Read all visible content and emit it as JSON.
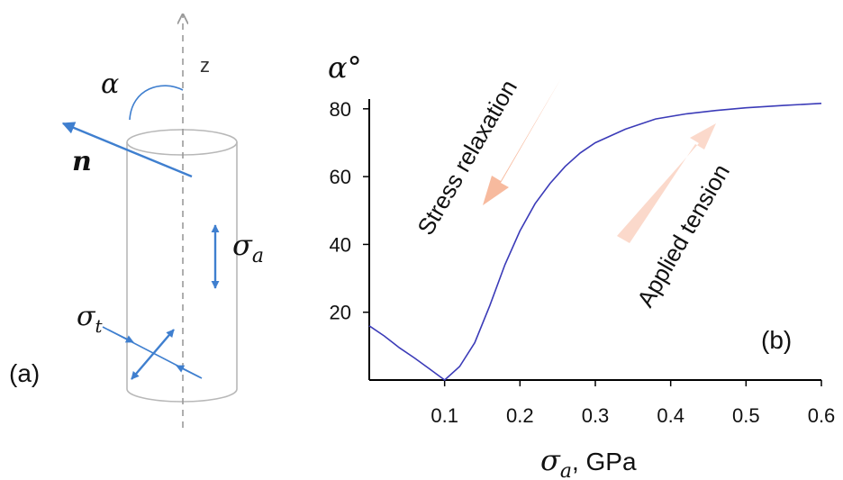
{
  "panel_a": {
    "label": "(a)",
    "axis_label": "z",
    "angle_label": "α",
    "normal_label": "n",
    "axial_stress_label": "σ",
    "axial_stress_sub": "a",
    "transverse_stress_label": "σ",
    "transverse_stress_sub": "t",
    "colors": {
      "vector": "#3f7fcf",
      "cylinder": "#b8b8b8",
      "axis": "#9a9a9a"
    }
  },
  "panel_b": {
    "label": "(b)",
    "arrow_relaxation_label": "Stress relaxation",
    "arrow_tension_label": "Applied tension",
    "colors": {
      "curve": "#3b3bb8",
      "relaxation_arrow": "#f6b394",
      "tension_arrow": "#fbd9cb"
    }
  },
  "chart_data": {
    "type": "line",
    "ylabel": "α°",
    "xlabel_symbol": "σ",
    "xlabel_sub": "a",
    "xlabel_unit": ", GPa",
    "xlim": [
      0,
      0.6
    ],
    "ylim": [
      0,
      85
    ],
    "xticks": [
      0.1,
      0.2,
      0.3,
      0.4,
      0.5,
      0.6
    ],
    "xtick_labels": [
      "0.1",
      "0.2",
      "0.3",
      "0.4",
      "0.5",
      "0.6"
    ],
    "yticks": [
      20,
      40,
      60,
      80
    ],
    "ytick_labels": [
      "20",
      "40",
      "60",
      "80"
    ],
    "series": [
      {
        "x": [
          0,
          0.02,
          0.04,
          0.06,
          0.08,
          0.1,
          0.12,
          0.14,
          0.16,
          0.18,
          0.2,
          0.22,
          0.24,
          0.26,
          0.28,
          0.3,
          0.34,
          0.38,
          0.42,
          0.46,
          0.5,
          0.55,
          0.6
        ],
        "y": [
          16,
          13,
          9.5,
          6.5,
          3.3,
          0,
          4,
          11,
          22,
          34,
          44,
          52,
          58,
          63,
          67,
          70,
          74,
          77,
          78.5,
          79.5,
          80.3,
          81,
          81.6
        ]
      }
    ]
  }
}
